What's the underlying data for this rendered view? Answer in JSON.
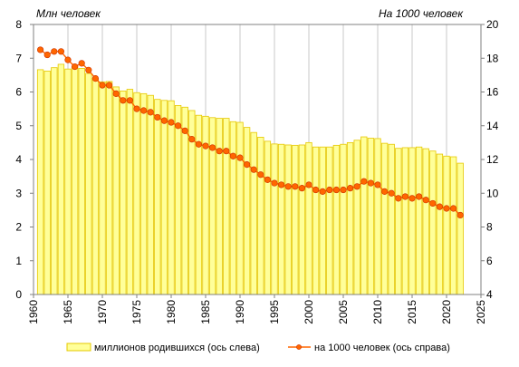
{
  "chart_data": {
    "type": "bar",
    "left_axis_title": "Млн  человек",
    "right_axis_title": "На 1000 человек",
    "xlim": [
      1960,
      2025
    ],
    "x_ticks": [
      1960,
      1965,
      1970,
      1975,
      1980,
      1985,
      1990,
      1995,
      2000,
      2005,
      2010,
      2015,
      2020,
      2025
    ],
    "ylim_left": [
      0,
      8
    ],
    "y_ticks_left": [
      0,
      1,
      2,
      3,
      4,
      5,
      6,
      7,
      8
    ],
    "ylim_right": [
      4,
      20
    ],
    "y_ticks_right": [
      4,
      6,
      8,
      10,
      12,
      14,
      16,
      18,
      20
    ],
    "grid": "vertical",
    "legend_position": "bottom",
    "colors": {
      "bar_fill": "#ffff99",
      "bar_edge": "#e6c800",
      "line": "#ff6600",
      "marker_fill": "#ff6600",
      "marker_edge": "#cc3300",
      "grid": "#c8c8c8"
    },
    "series": [
      {
        "name": "миллионов  родившихся (ось слева)",
        "type": "bar",
        "axis": "left",
        "x": [
          1961,
          1962,
          1963,
          1964,
          1965,
          1966,
          1967,
          1968,
          1969,
          1970,
          1971,
          1972,
          1973,
          1974,
          1975,
          1976,
          1977,
          1978,
          1979,
          1980,
          1981,
          1982,
          1983,
          1984,
          1985,
          1986,
          1987,
          1988,
          1989,
          1990,
          1991,
          1992,
          1993,
          1994,
          1995,
          1996,
          1997,
          1998,
          1999,
          2000,
          2001,
          2002,
          2003,
          2004,
          2005,
          2006,
          2007,
          2008,
          2009,
          2010,
          2011,
          2012,
          2013,
          2014,
          2015,
          2016,
          2017,
          2018,
          2019,
          2020,
          2021,
          2022
        ],
        "values": [
          6.66,
          6.62,
          6.72,
          6.82,
          6.68,
          6.75,
          6.7,
          6.55,
          6.4,
          6.3,
          6.31,
          6.15,
          6.03,
          6.08,
          5.98,
          5.95,
          5.9,
          5.78,
          5.75,
          5.74,
          5.6,
          5.55,
          5.45,
          5.31,
          5.28,
          5.24,
          5.22,
          5.22,
          5.12,
          5.1,
          4.95,
          4.8,
          4.66,
          4.54,
          4.46,
          4.45,
          4.43,
          4.42,
          4.43,
          4.5,
          4.37,
          4.37,
          4.37,
          4.42,
          4.45,
          4.5,
          4.57,
          4.67,
          4.63,
          4.62,
          4.48,
          4.45,
          4.33,
          4.35,
          4.35,
          4.37,
          4.32,
          4.25,
          4.16,
          4.1,
          4.08,
          3.89
        ]
      },
      {
        "name": "на 1000 человек (ось справа)",
        "type": "line",
        "axis": "right",
        "x": [
          1961,
          1962,
          1963,
          1964,
          1965,
          1966,
          1967,
          1968,
          1969,
          1970,
          1971,
          1972,
          1973,
          1974,
          1975,
          1976,
          1977,
          1978,
          1979,
          1980,
          1981,
          1982,
          1983,
          1984,
          1985,
          1986,
          1987,
          1988,
          1989,
          1990,
          1991,
          1992,
          1993,
          1994,
          1995,
          1996,
          1997,
          1998,
          1999,
          2000,
          2001,
          2002,
          2003,
          2004,
          2005,
          2006,
          2007,
          2008,
          2009,
          2010,
          2011,
          2012,
          2013,
          2014,
          2015,
          2016,
          2017,
          2018,
          2019,
          2020,
          2021,
          2022
        ],
        "values": [
          18.5,
          18.2,
          18.4,
          18.4,
          17.9,
          17.5,
          17.7,
          17.3,
          16.8,
          16.4,
          16.4,
          15.9,
          15.5,
          15.5,
          15.0,
          14.9,
          14.8,
          14.5,
          14.3,
          14.2,
          14.0,
          13.7,
          13.2,
          12.9,
          12.8,
          12.7,
          12.5,
          12.5,
          12.2,
          12.1,
          11.7,
          11.4,
          11.1,
          10.8,
          10.6,
          10.5,
          10.4,
          10.4,
          10.3,
          10.5,
          10.2,
          10.1,
          10.2,
          10.2,
          10.2,
          10.3,
          10.4,
          10.7,
          10.6,
          10.5,
          10.1,
          10.0,
          9.7,
          9.8,
          9.7,
          9.8,
          9.6,
          9.4,
          9.2,
          9.1,
          9.1,
          8.7
        ]
      }
    ]
  }
}
